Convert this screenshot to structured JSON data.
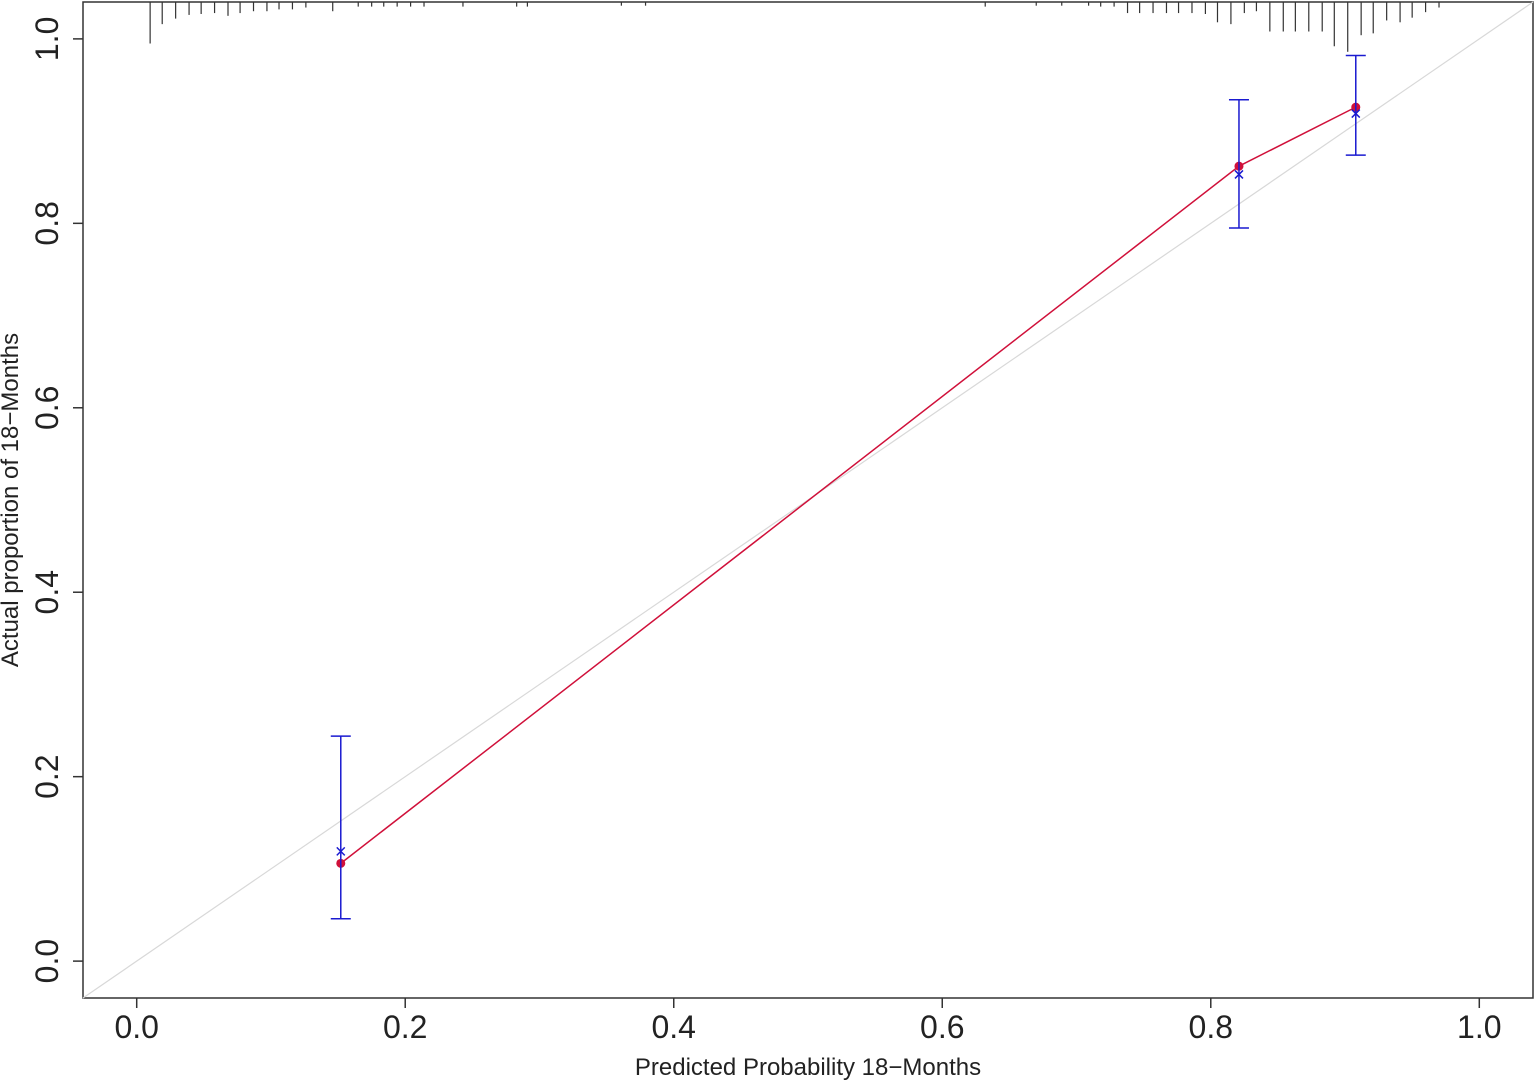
{
  "chart_data": {
    "type": "calibration",
    "x_label": "Predicted Probability 18−Months",
    "y_label": "Actual proportion of 18−Months",
    "xlim": [
      -0.04,
      1.04
    ],
    "ylim": [
      -0.04,
      1.04
    ],
    "xticks": [
      {
        "value": 0,
        "label": "0.0"
      },
      0.2,
      0.4,
      0.6,
      0.8,
      {
        "value": 1,
        "label": "1.0"
      }
    ],
    "yticks": [
      {
        "value": 0,
        "label": "0.0"
      },
      0.2,
      0.4,
      0.6,
      0.8,
      {
        "value": 1,
        "label": "1.0"
      }
    ],
    "x": [
      0.152,
      0.821,
      0.908
    ],
    "series": [
      {
        "color": "#d0103a",
        "marker": "dot",
        "line": true,
        "values": [
          0.106,
          0.862,
          0.926
        ]
      },
      {
        "color": "#1a1ad0",
        "marker": "x",
        "values": [
          0.119,
          0.853,
          0.919
        ],
        "lower": [
          0.046,
          0.795,
          0.874
        ],
        "upper": [
          0.244,
          0.934,
          0.982
        ]
      }
    ],
    "reference_color": "#d8d8d8",
    "spikes": {
      "color": "#333333",
      "x": [
        0.01,
        0.019,
        0.029,
        0.039,
        0.048,
        0.058,
        0.068,
        0.077,
        0.087,
        0.097,
        0.106,
        0.116,
        0.126,
        0.146,
        0.165,
        0.175,
        0.184,
        0.194,
        0.204,
        0.214,
        0.243,
        0.283,
        0.291,
        0.361,
        0.379,
        0.632,
        0.67,
        0.689,
        0.709,
        0.718,
        0.728,
        0.738,
        0.747,
        0.757,
        0.767,
        0.776,
        0.786,
        0.796,
        0.805,
        0.815,
        0.825,
        0.834,
        0.844,
        0.854,
        0.863,
        0.873,
        0.883,
        0.892,
        0.902,
        0.912,
        0.921,
        0.931,
        0.941,
        0.95,
        0.96,
        0.97
      ],
      "heights": [
        0.045,
        0.024,
        0.018,
        0.014,
        0.013,
        0.012,
        0.015,
        0.012,
        0.01,
        0.01,
        0.008,
        0.008,
        0.006,
        0.01,
        0.005,
        0.005,
        0.005,
        0.005,
        0.005,
        0.005,
        0.005,
        0.005,
        0.005,
        0.004,
        0.004,
        0.005,
        0.004,
        0.004,
        0.004,
        0.005,
        0.005,
        0.012,
        0.012,
        0.012,
        0.012,
        0.012,
        0.012,
        0.013,
        0.022,
        0.024,
        0.012,
        0.01,
        0.032,
        0.032,
        0.032,
        0.032,
        0.032,
        0.048,
        0.054,
        0.036,
        0.034,
        0.02,
        0.022,
        0.017,
        0.011,
        0.006
      ]
    }
  }
}
